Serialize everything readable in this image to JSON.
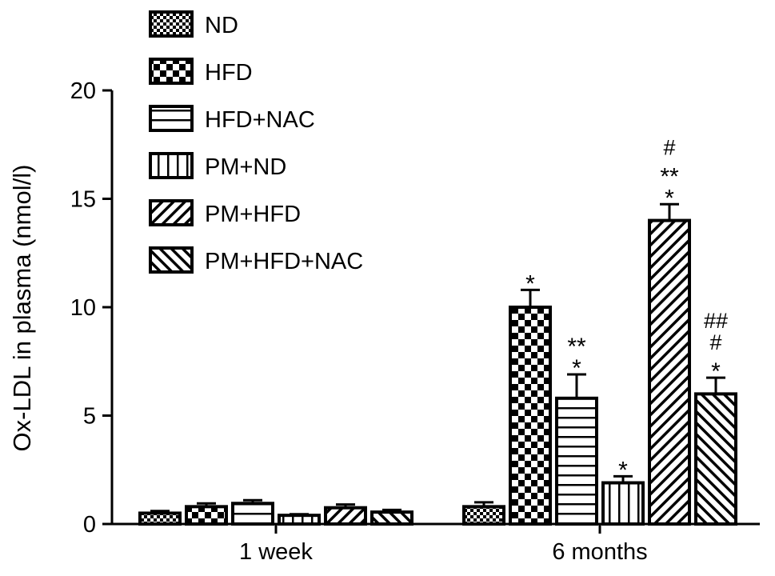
{
  "chart_data": {
    "type": "bar",
    "ylabel": "Ox-LDL in plasma (nmol/l)",
    "xlabel": "",
    "ylim": [
      0,
      20
    ],
    "yticks": [
      0,
      5,
      10,
      15,
      20
    ],
    "legend_position": "top-left",
    "categories": [
      "1 week",
      "6 months"
    ],
    "series": [
      {
        "name": "ND",
        "pattern": "fine-check",
        "values": [
          0.5,
          0.8
        ],
        "errors": [
          0.1,
          0.2
        ],
        "annotations": [
          "",
          ""
        ]
      },
      {
        "name": "HFD",
        "pattern": "checker",
        "values": [
          0.8,
          10.0
        ],
        "errors": [
          0.15,
          0.8
        ],
        "annotations": [
          "",
          "*"
        ]
      },
      {
        "name": "HFD+NAC",
        "pattern": "horizontal",
        "values": [
          0.95,
          5.8
        ],
        "errors": [
          0.15,
          1.1
        ],
        "annotations": [
          "",
          "**\n*"
        ]
      },
      {
        "name": "PM+ND",
        "pattern": "vertical",
        "values": [
          0.4,
          1.9
        ],
        "errors": [
          0.05,
          0.3
        ],
        "annotations": [
          "",
          "*"
        ]
      },
      {
        "name": "PM+HFD",
        "pattern": "diag-up",
        "values": [
          0.75,
          14.0
        ],
        "errors": [
          0.15,
          0.75
        ],
        "annotations": [
          "",
          "#\n**\n*"
        ]
      },
      {
        "name": "PM+HFD+NAC",
        "pattern": "diag-down",
        "values": [
          0.55,
          6.0
        ],
        "errors": [
          0.1,
          0.75
        ],
        "annotations": [
          "",
          "##\n#\n*"
        ]
      }
    ]
  }
}
